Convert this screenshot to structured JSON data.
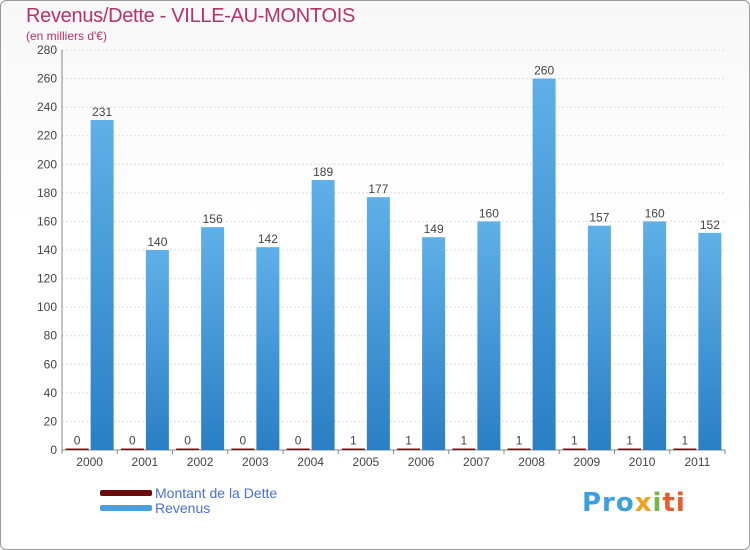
{
  "title": "Revenus/Dette - VILLE-AU-MONTOIS",
  "subtitle": "(en milliers d'€)",
  "brand": {
    "p1": "Pro",
    "p2": "x",
    "p3": "i",
    "p4": "ti"
  },
  "chart_data": {
    "type": "bar",
    "title": "Revenus/Dette - VILLE-AU-MONTOIS",
    "ylabel": "(en milliers d'€)",
    "xlabel": "",
    "ylim": [
      0,
      280
    ],
    "ytick_step": 20,
    "grid": true,
    "legend_position": "bottom-left",
    "categories": [
      "2000",
      "2001",
      "2002",
      "2003",
      "2004",
      "2005",
      "2006",
      "2007",
      "2008",
      "2009",
      "2010",
      "2011"
    ],
    "series": [
      {
        "name": "Montant de la Dette",
        "color": "#6b0a0a",
        "values": [
          0,
          0,
          0,
          0,
          0,
          1,
          1,
          1,
          1,
          1,
          1,
          1
        ]
      },
      {
        "name": "Revenus",
        "color": "#4a9fdd",
        "values": [
          231,
          140,
          156,
          142,
          189,
          177,
          149,
          160,
          260,
          157,
          160,
          152
        ]
      }
    ]
  }
}
